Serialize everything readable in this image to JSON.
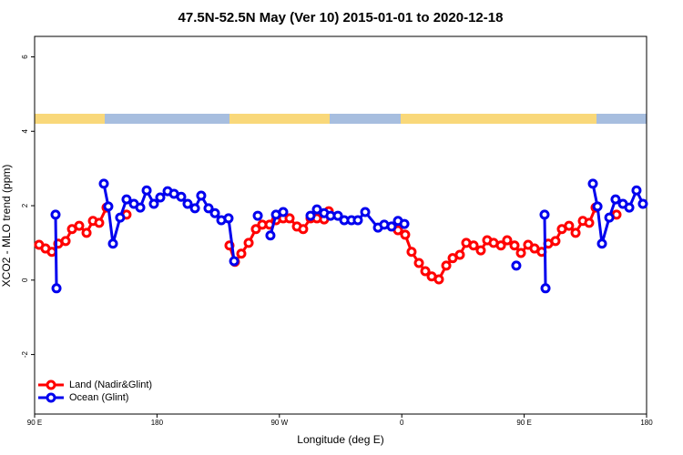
{
  "chart_data": {
    "type": "line",
    "title": "47.5N-52.5N May (Ver 10)   2015-01-01 to 2020-12-18",
    "xlabel": "Longitude (deg E)",
    "ylabel": "XCO2 - MLO trend (ppm)",
    "xlim": [
      90,
      540
    ],
    "ylim": [
      -3.6,
      6.55
    ],
    "xticks": [
      {
        "value": 90,
        "label": "90 E"
      },
      180,
      {
        "value": 270,
        "label": "90 W"
      },
      {
        "value": 360,
        "label": "0"
      },
      {
        "value": 450,
        "label": "90 E"
      },
      {
        "value": 540,
        "label": "180"
      }
    ],
    "yticks": [
      -2,
      0,
      2,
      4,
      6
    ],
    "legend": "bottom-left",
    "series": [
      {
        "name": "Land (Nadir&Glint)",
        "color": "#ff0000",
        "x": [
          93.3,
          98.0,
          102.7,
          107.4,
          112.8,
          117.5,
          122.8,
          128.2,
          132.9,
          137.5,
          142.9,
          150,
          157.6,
          200,
          233.3,
          237.3,
          242.0,
          247.4,
          252.7,
          257.4,
          262.8,
          267.5,
          272.8,
          277.5,
          282.9,
          287.5,
          292.9,
          297.6,
          302.9,
          306.3,
          340,
          357.2,
          362.5,
          367.2,
          372.6,
          377.3,
          382.0,
          387.3,
          392.7,
          397.4,
          402.7,
          407.4,
          412.8,
          418.1,
          422.8,
          427.5,
          432.9,
          437.5,
          442.9,
          447.6,
          452.9,
          457.6,
          462.9,
          467.7,
          473.0,
          477.7,
          483.0,
          487.8,
          493.1,
          497.8,
          502.5,
          510,
          517.9
        ],
        "values": [
          0.95,
          0.85,
          0.76,
          0.98,
          1.05,
          1.37,
          1.46,
          1.27,
          1.59,
          1.54,
          1.95,
          null,
          1.76,
          null,
          0.93,
          0.49,
          0.71,
          1.0,
          1.37,
          1.49,
          1.49,
          1.61,
          1.66,
          1.66,
          1.44,
          1.37,
          1.66,
          1.66,
          1.63,
          1.85,
          null,
          1.34,
          1.22,
          0.76,
          0.46,
          0.24,
          0.1,
          0.02,
          0.39,
          0.59,
          0.68,
          1.0,
          0.93,
          0.8,
          1.07,
          1.0,
          0.93,
          1.07,
          0.93,
          0.73,
          0.95,
          0.85,
          0.76,
          0.98,
          1.05,
          1.37,
          1.46,
          1.27,
          1.59,
          1.54,
          1.95,
          null,
          1.76
        ]
      },
      {
        "name": "Ocean (Glint)",
        "color": "#0000ee",
        "x": [
          105.4,
          106.1,
          120,
          140.9,
          144.2,
          147.6,
          152.9,
          157.6,
          163.0,
          167.7,
          172.4,
          177.7,
          182.4,
          187.8,
          192.5,
          197.8,
          202.5,
          207.9,
          212.5,
          217.9,
          222.6,
          227.3,
          232.6,
          236.7,
          245,
          254.1,
          258,
          263.4,
          267.5,
          272.8,
          282,
          292.9,
          297.6,
          302.9,
          307.6,
          313.0,
          317.7,
          323.0,
          327.7,
          333.1,
          342.5,
          347.1,
          352.5,
          357.2,
          361.9,
          400,
          444.2,
          455,
          465.0,
          465.7,
          480,
          500.5,
          503.9,
          507.2,
          512.6,
          517.2,
          522.6,
          527.3,
          532.6,
          537.3
        ],
        "values": [
          1.76,
          -0.22,
          null,
          2.59,
          1.98,
          0.98,
          1.68,
          2.17,
          2.05,
          1.95,
          2.41,
          2.05,
          2.22,
          2.39,
          2.32,
          2.24,
          2.05,
          1.93,
          2.27,
          1.93,
          1.8,
          1.61,
          1.66,
          0.51,
          null,
          1.73,
          null,
          1.2,
          1.76,
          1.83,
          null,
          1.73,
          1.9,
          1.8,
          1.73,
          1.73,
          1.61,
          1.61,
          1.61,
          1.83,
          1.41,
          1.49,
          1.44,
          1.59,
          1.51,
          null,
          0.39,
          null,
          1.76,
          -0.22,
          null,
          2.59,
          1.98,
          0.98,
          1.68,
          2.17,
          2.05,
          1.95,
          2.41,
          2.05
        ]
      }
    ]
  }
}
